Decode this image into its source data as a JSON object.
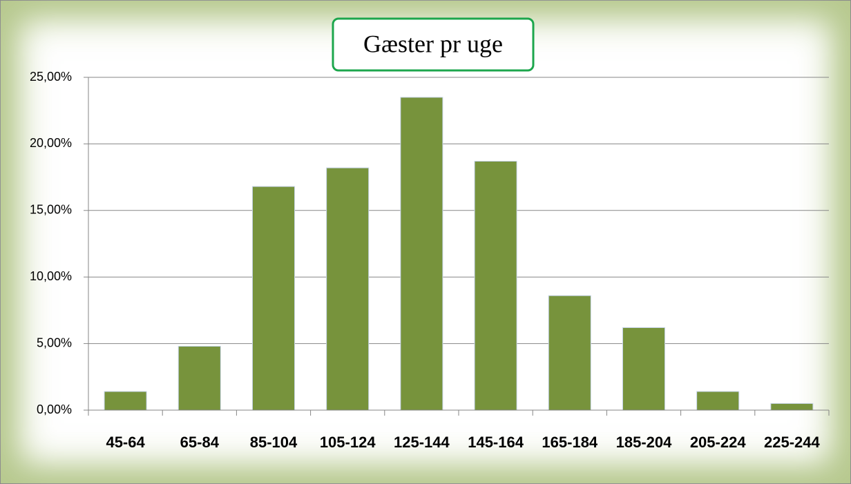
{
  "chart_data": {
    "type": "bar",
    "title": "Gæster pr uge",
    "categories": [
      "45-64",
      "65-84",
      "85-104",
      "105-124",
      "125-144",
      "145-164",
      "165-184",
      "185-204",
      "205-224",
      "225-244"
    ],
    "values": [
      1.4,
      4.8,
      16.8,
      18.2,
      23.5,
      18.7,
      8.6,
      6.2,
      1.4,
      0.5
    ],
    "color": "#77933c",
    "ylim": [
      0,
      25
    ],
    "yticks": [
      {
        "value": 0,
        "label": "0,00%"
      },
      {
        "value": 5,
        "label": "5,00%"
      },
      {
        "value": 10,
        "label": "10,00%"
      },
      {
        "value": 15,
        "label": "15,00%"
      },
      {
        "value": 20,
        "label": "20,00%"
      },
      {
        "value": 25,
        "label": "25,00%"
      }
    ],
    "grid": true
  }
}
